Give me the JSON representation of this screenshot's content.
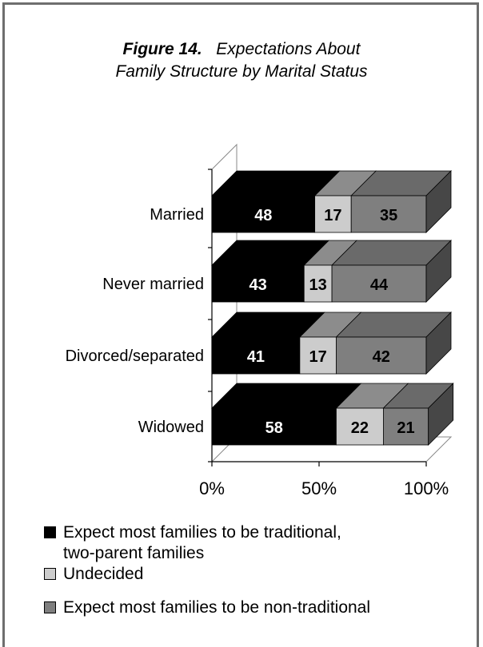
{
  "title": {
    "figure_label": "Figure 14.",
    "line1_rest": "Expectations About",
    "line2": "Family Structure by Marital Status"
  },
  "chart_data": {
    "type": "bar",
    "orientation": "horizontal",
    "stacked": "percent",
    "three_d": true,
    "title": "Figure 14. Expectations About Family Structure by Marital Status",
    "categories": [
      "Married",
      "Never married",
      "Divorced/separated",
      "Widowed"
    ],
    "series": [
      {
        "name": "Expect most families to be traditional, two-parent families",
        "values": [
          48,
          43,
          41,
          58
        ],
        "color": "#000000",
        "top_color": "#000000",
        "side_color": "#000000",
        "label_color": "#ffffff"
      },
      {
        "name": "Undecided",
        "values": [
          17,
          13,
          17,
          22
        ],
        "color": "#cccccc",
        "top_color": "#8c8c8c",
        "side_color": "#8c8c8c",
        "label_color": "#000000"
      },
      {
        "name": "Expect most families to be non-traditional",
        "values": [
          35,
          44,
          42,
          21
        ],
        "color": "#7f7f7f",
        "top_color": "#6a6a6a",
        "side_color": "#474747",
        "label_color": "#000000"
      }
    ],
    "x_ticks": [
      "0%",
      "50%",
      "100%"
    ],
    "xlim": [
      0,
      100
    ],
    "legend_position": "bottom",
    "grid": false
  },
  "legend": {
    "items": [
      {
        "lines": [
          "Expect most families to be traditional,",
          "two-parent families"
        ],
        "color": "#000000"
      },
      {
        "lines": [
          "Undecided"
        ],
        "color": "#cccccc"
      },
      {
        "lines": [
          "Expect most families to be non-traditional"
        ],
        "color": "#7f7f7f"
      }
    ]
  }
}
